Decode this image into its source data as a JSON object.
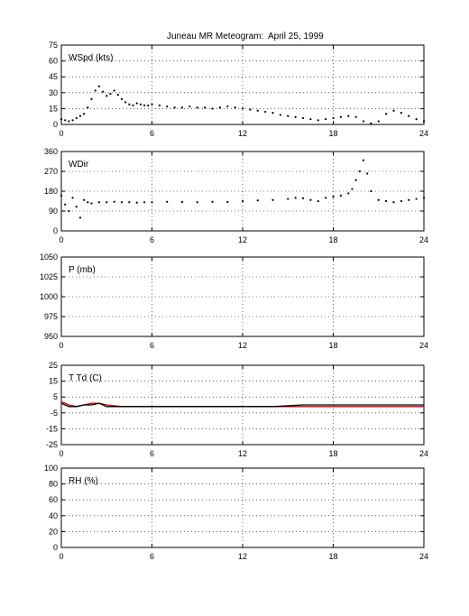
{
  "figure": {
    "title": "Juneau MR Meteogram:",
    "date": "April 25, 1999"
  },
  "chart_data": [
    {
      "type": "scatter",
      "label": "WSpd (kts)",
      "x_ticks": [
        0,
        6,
        12,
        18,
        24
      ],
      "y_ticks": [
        0,
        15,
        30,
        45,
        60,
        75
      ],
      "xlim": [
        0,
        24
      ],
      "ylim": [
        0,
        75
      ],
      "grid": true,
      "series": [
        {
          "color": "#000000",
          "x": [
            0.0,
            0.25,
            0.5,
            0.75,
            1.0,
            1.25,
            1.5,
            1.75,
            2.0,
            2.25,
            2.5,
            2.75,
            3.0,
            3.25,
            3.5,
            3.75,
            4.0,
            4.25,
            4.5,
            4.75,
            5.0,
            5.25,
            5.5,
            5.75,
            6.0,
            6.5,
            7.0,
            7.5,
            8.0,
            8.5,
            9.0,
            9.5,
            10.0,
            10.5,
            11.0,
            11.5,
            12.0,
            12.5,
            13.0,
            13.5,
            14.0,
            14.5,
            15.0,
            15.5,
            16.0,
            16.5,
            17.0,
            17.5,
            18.0,
            18.5,
            19.0,
            19.5,
            20.0,
            20.5,
            21.0,
            21.5,
            22.0,
            22.5,
            23.0,
            23.5,
            24.0
          ],
          "y": [
            5,
            4,
            3,
            4,
            6,
            8,
            10,
            16,
            24,
            32,
            36,
            31,
            27,
            29,
            32,
            28,
            24,
            21,
            19,
            18,
            20,
            19,
            18,
            18,
            19,
            18,
            17,
            16,
            16,
            17,
            16,
            16,
            15,
            16,
            17,
            16,
            15,
            14,
            13,
            12,
            11,
            9,
            8,
            7,
            6,
            5,
            4,
            5,
            6,
            7,
            8,
            7,
            3,
            1,
            3,
            10,
            13,
            11,
            8,
            5,
            3
          ]
        }
      ]
    },
    {
      "type": "scatter",
      "label": "WDir",
      "x_ticks": [
        0,
        6,
        12,
        18,
        24
      ],
      "y_ticks": [
        0,
        90,
        180,
        270,
        360
      ],
      "xlim": [
        0,
        24
      ],
      "ylim": [
        0,
        360
      ],
      "grid": true,
      "series": [
        {
          "color": "#000000",
          "x": [
            0.0,
            0.25,
            0.5,
            0.75,
            1.0,
            1.25,
            1.5,
            1.75,
            2.0,
            2.5,
            3.0,
            3.5,
            4.0,
            4.5,
            5.0,
            5.5,
            6.0,
            7.0,
            8.0,
            9.0,
            10.0,
            11.0,
            12.0,
            13.0,
            14.0,
            15.0,
            15.5,
            16.0,
            16.5,
            17.0,
            17.5,
            18.0,
            18.5,
            19.0,
            19.25,
            19.5,
            19.75,
            20.0,
            20.25,
            20.5,
            21.0,
            21.5,
            22.0,
            22.5,
            23.0,
            23.5,
            24.0
          ],
          "y": [
            160,
            120,
            90,
            150,
            110,
            60,
            140,
            130,
            125,
            130,
            130,
            132,
            130,
            130,
            128,
            130,
            130,
            132,
            131,
            130,
            132,
            131,
            135,
            138,
            140,
            145,
            150,
            148,
            140,
            135,
            150,
            155,
            160,
            170,
            190,
            230,
            270,
            320,
            260,
            180,
            140,
            135,
            130,
            135,
            140,
            145,
            150
          ]
        }
      ]
    },
    {
      "type": "line",
      "label": "P (mb)",
      "x_ticks": [
        0,
        6,
        12,
        18,
        24
      ],
      "y_ticks": [
        950,
        975,
        1000,
        1025,
        1050
      ],
      "xlim": [
        0,
        24
      ],
      "ylim": [
        950,
        1050
      ],
      "grid": true,
      "series": []
    },
    {
      "type": "line",
      "label": "T Td (C)",
      "x_ticks": [
        0,
        6,
        12,
        18,
        24
      ],
      "y_ticks": [
        -25,
        -15,
        -5,
        5,
        15,
        25
      ],
      "xlim": [
        0,
        24
      ],
      "ylim": [
        -25,
        25
      ],
      "grid": true,
      "series": [
        {
          "color": "#cc0000",
          "x": [
            0,
            0.5,
            1,
            1.5,
            2,
            2.5,
            3,
            4,
            5,
            6,
            8,
            10,
            12,
            14,
            16,
            18,
            20,
            22,
            24
          ],
          "y": [
            2,
            0,
            -1,
            0,
            1,
            1,
            0,
            -1,
            -1,
            -1,
            -1,
            -1,
            -1,
            -1,
            -1,
            -1,
            -1,
            -1,
            -1
          ]
        },
        {
          "color": "#000000",
          "x": [
            0,
            0.5,
            1,
            1.5,
            2,
            2.5,
            3,
            4,
            5,
            6,
            8,
            10,
            12,
            14,
            16,
            18,
            20,
            22,
            24
          ],
          "y": [
            1,
            -1,
            -1,
            0,
            0,
            1,
            -1,
            -1,
            -1,
            -1,
            -1,
            -1,
            -1,
            -1,
            0,
            0,
            0,
            0,
            0
          ]
        }
      ]
    },
    {
      "type": "line",
      "label": "RH (%)",
      "x_ticks": [
        0,
        6,
        12,
        18,
        24
      ],
      "y_ticks": [
        0,
        20,
        40,
        60,
        80,
        100
      ],
      "xlim": [
        0,
        24
      ],
      "ylim": [
        0,
        100
      ],
      "grid": true,
      "series": []
    }
  ]
}
